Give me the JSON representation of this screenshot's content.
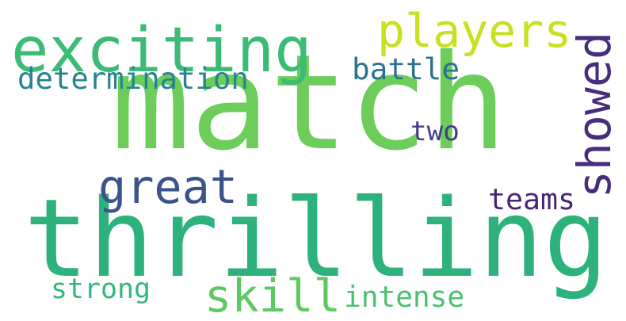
{
  "word_cloud": {
    "words": [
      {
        "id": "match",
        "text": "match",
        "color": "#6ccd5a"
      },
      {
        "id": "thrilling",
        "text": "thrilling",
        "color": "#2db27d"
      },
      {
        "id": "exciting",
        "text": "exciting",
        "color": "#3bbb75"
      },
      {
        "id": "players",
        "text": "players",
        "color": "#c8e020"
      },
      {
        "id": "showed",
        "text": "showed",
        "color": "#472d7b"
      },
      {
        "id": "great",
        "text": "great",
        "color": "#3b528b"
      },
      {
        "id": "determination",
        "text": "determination",
        "color": "#26838f"
      },
      {
        "id": "battle",
        "text": "battle",
        "color": "#2c728e"
      },
      {
        "id": "two",
        "text": "two",
        "color": "#433e85"
      },
      {
        "id": "teams",
        "text": "teams",
        "color": "#482475"
      },
      {
        "id": "skill",
        "text": "skill",
        "color": "#5ec962"
      },
      {
        "id": "strong",
        "text": "strong",
        "color": "#35b779"
      },
      {
        "id": "intense",
        "text": "intense",
        "color": "#4ac16d"
      }
    ]
  }
}
